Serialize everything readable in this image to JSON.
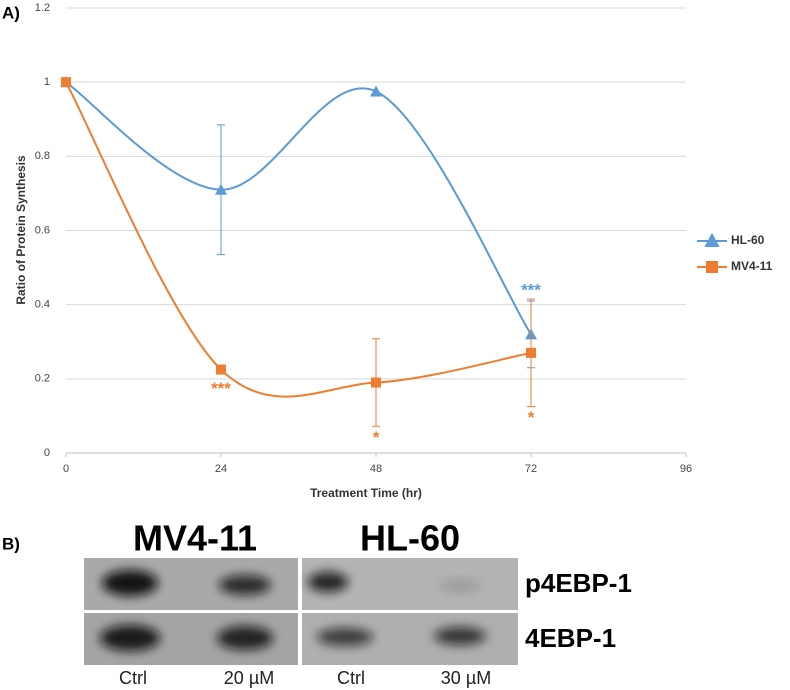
{
  "chart_data": {
    "type": "line",
    "panel_label": "A)",
    "x_label": "Treatment Time (hr)",
    "y_label": "Ratio of Protein Synthesis",
    "x": [
      0,
      24,
      48,
      72
    ],
    "xlim": [
      0,
      96
    ],
    "xticks": [
      0,
      24,
      48,
      72,
      96
    ],
    "ylim": [
      0,
      1.2
    ],
    "yticks": [
      0,
      0.2,
      0.4,
      0.6,
      0.8,
      1,
      1.2
    ],
    "grid": true,
    "smooth": true,
    "legend": "right",
    "series": [
      {
        "name": "HL-60",
        "color": "#5b9bd5",
        "marker": "triangle",
        "values": [
          1,
          0.71,
          0.975,
          0.32
        ],
        "errors": [
          null,
          0.175,
          null,
          0.09
        ],
        "significance": [
          null,
          null,
          null,
          "***"
        ]
      },
      {
        "name": "MV4-11",
        "color": "#ed7d31",
        "marker": "square",
        "values": [
          1,
          0.225,
          0.19,
          0.27
        ],
        "errors": [
          null,
          null,
          0.118,
          0.145
        ],
        "significance": [
          null,
          "***",
          "*",
          "*"
        ]
      }
    ]
  },
  "blot": {
    "panel_label": "B)",
    "groups": [
      {
        "name": "MV4-11",
        "lanes": [
          "Ctrl",
          "20 µM"
        ]
      },
      {
        "name": "HL-60",
        "lanes": [
          "Ctrl",
          "30 µM"
        ]
      }
    ],
    "proteins": [
      "p4EBP-1",
      "4EBP-1"
    ]
  }
}
